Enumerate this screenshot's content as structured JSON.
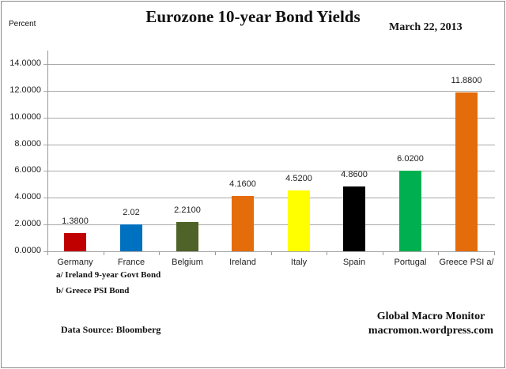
{
  "chart_data": {
    "type": "bar",
    "title": "Eurozone 10-year Bond Yields",
    "subtitle": "March 22, 2013",
    "xlabel": "",
    "ylabel": "Percent",
    "ylim": [
      0,
      14
    ],
    "grid": true,
    "legend": "none",
    "y_ticks": [
      "0.0000",
      "2.0000",
      "4.0000",
      "6.0000",
      "8.0000",
      "10.0000",
      "12.0000",
      "14.0000"
    ],
    "categories": [
      "Germany",
      "France",
      "Belgium",
      "Ireland",
      "Italy",
      "Spain",
      "Portugal",
      "Greece PSI a/"
    ],
    "values": [
      1.38,
      2.02,
      2.21,
      4.16,
      4.52,
      4.86,
      6.02,
      11.88
    ],
    "value_labels": [
      "1.3800",
      "2.02",
      "2.2100",
      "4.1600",
      "4.5200",
      "4.8600",
      "6.0200",
      "11.8800"
    ],
    "colors": [
      "#c00000",
      "#0070c0",
      "#4f6228",
      "#e46c0a",
      "#ffff00",
      "#000000",
      "#00b050",
      "#e46c0a"
    ],
    "annotations": [
      "a/ Ireland 9-year Govt Bond",
      "b/ Greece PSI Bond",
      "Data Source:  Bloomberg",
      "Global Macro Monitor",
      "macromon.wordpress.com"
    ]
  },
  "notes": {
    "a": "a/ Ireland 9-year Govt Bond",
    "b": "b/ Greece PSI Bond"
  },
  "footer": {
    "source": "Data Source:  Bloomberg",
    "credit_line1": "Global Macro Monitor",
    "credit_line2": "macromon.wordpress.com"
  }
}
